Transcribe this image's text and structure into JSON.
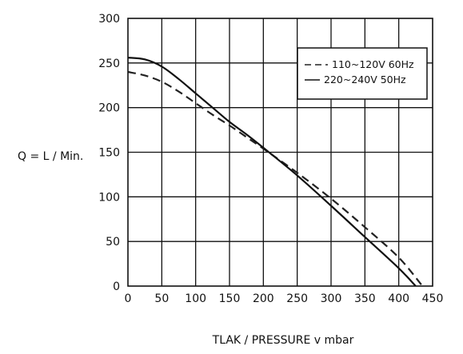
{
  "chart_data": {
    "type": "line",
    "title": "",
    "xlabel": "TLAK / PRESSURE v mbar",
    "ylabel": "Q = L / Min.",
    "xlim": [
      0,
      450
    ],
    "ylim": [
      0,
      300
    ],
    "x_ticks": [
      "0",
      "50",
      "100",
      "150",
      "200",
      "250",
      "300",
      "350",
      "400",
      "450"
    ],
    "y_ticks": [
      "0",
      "50",
      "100",
      "150",
      "200",
      "250",
      "300"
    ],
    "grid": true,
    "legend_position": "top-right",
    "series": [
      {
        "name": "110~120V 60Hz",
        "style": "dashed",
        "color": "#222222",
        "x": [
          0,
          25,
          50,
          75,
          100,
          125,
          150,
          175,
          200,
          250,
          300,
          350,
          400,
          435
        ],
        "y": [
          240,
          236,
          229,
          218,
          205,
          192,
          180,
          167,
          154,
          127,
          98,
          66,
          32,
          0
        ]
      },
      {
        "name": "220~240V 50Hz",
        "style": "solid",
        "color": "#111111",
        "x": [
          0,
          25,
          50,
          75,
          100,
          125,
          150,
          175,
          200,
          250,
          300,
          350,
          400,
          425
        ],
        "y": [
          256,
          254,
          246,
          232,
          216,
          200,
          184,
          170,
          155,
          124,
          90,
          55,
          20,
          0
        ]
      }
    ]
  }
}
